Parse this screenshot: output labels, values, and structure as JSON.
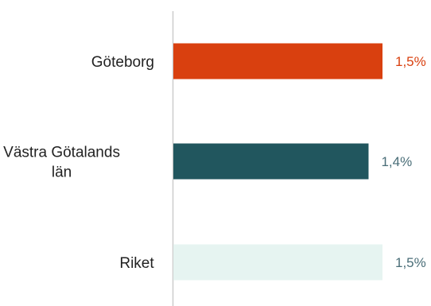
{
  "chart_data": {
    "type": "bar",
    "orientation": "horizontal",
    "categories": [
      [
        "Göteborg"
      ],
      [
        "Västra Götalands",
        "län"
      ],
      [
        "Riket"
      ]
    ],
    "values": [
      1.5,
      1.4,
      1.5
    ],
    "value_labels": [
      "1,5%",
      "1,4%",
      "1,5%"
    ],
    "bar_colors": [
      "#d9400f",
      "#21565e",
      "#e6f4f1"
    ],
    "label_colors": [
      "#d9400f",
      "#4a6e78",
      "#4a6e78"
    ],
    "axis_color": "#cccccc",
    "xlim": [
      0,
      1.5
    ],
    "grid": false,
    "legend": "none"
  }
}
